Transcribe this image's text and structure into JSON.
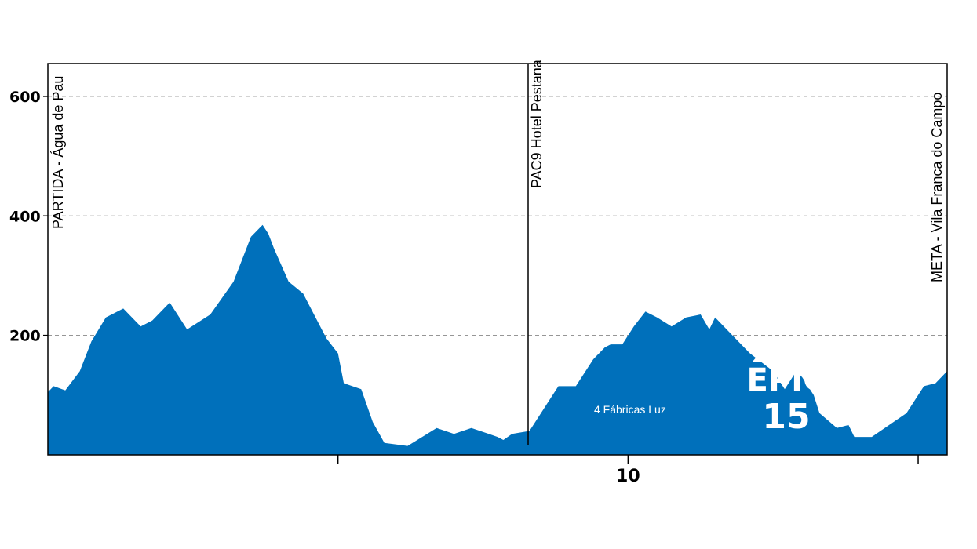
{
  "chart_data": {
    "type": "area",
    "title": "",
    "xlabel": "",
    "ylabel": "",
    "xlim": [
      0,
      15.5
    ],
    "ylim": [
      0,
      655
    ],
    "grid": true,
    "y_ticks": [
      200,
      400,
      600
    ],
    "x_ticks": [
      5,
      10,
      15
    ],
    "x_tick_labels": [
      "",
      "10",
      ""
    ],
    "y_tick_labels": [
      "200",
      "400",
      "600"
    ],
    "fill_color": "#0070bb",
    "series": [
      {
        "x": [
          0,
          0.1,
          0.3,
          0.55,
          0.75,
          1.0,
          1.3,
          1.4,
          1.6,
          1.8,
          2.1,
          2.4,
          2.8,
          3.2,
          3.5,
          3.7,
          3.8,
          3.9,
          4.15,
          4.4,
          4.8,
          5.0,
          5.1,
          5.4,
          5.6,
          5.8,
          6.2,
          6.7,
          7.0,
          7.3,
          7.45,
          7.6,
          7.75,
          7.85,
          8.0,
          8.3,
          8.6,
          8.8,
          9.1,
          9.4,
          9.6,
          9.7,
          9.9,
          10.1,
          10.3,
          10.5,
          10.75,
          11.0,
          11.25,
          11.4,
          11.5,
          11.8,
          12.1,
          12.5,
          12.7,
          12.9,
          13.0,
          13.2,
          13.3,
          13.6,
          13.8,
          13.9,
          14.2,
          14.5,
          14.8,
          15.1,
          15.3,
          15.5
        ],
        "y": [
          105,
          115,
          108,
          140,
          190,
          230,
          245,
          235,
          215,
          225,
          255,
          210,
          235,
          290,
          365,
          385,
          370,
          345,
          290,
          270,
          195,
          170,
          120,
          110,
          55,
          20,
          15,
          45,
          35,
          45,
          40,
          35,
          30,
          25,
          35,
          40,
          85,
          115,
          115,
          160,
          180,
          185,
          185,
          215,
          240,
          230,
          215,
          230,
          235,
          210,
          230,
          200,
          170,
          140,
          110,
          140,
          130,
          100,
          70,
          45,
          50,
          30,
          30,
          50,
          70,
          115,
          120,
          140
        ]
      }
    ],
    "annotations": {
      "start": "PARTIDA - Água de Pau",
      "mid": "PAC9 Hotel Pestana",
      "end": "META - Vila Franca do Campo",
      "inner": "4 Fábricas Luz"
    },
    "logo": {
      "line1": "EPIC",
      "line2": "15"
    }
  }
}
